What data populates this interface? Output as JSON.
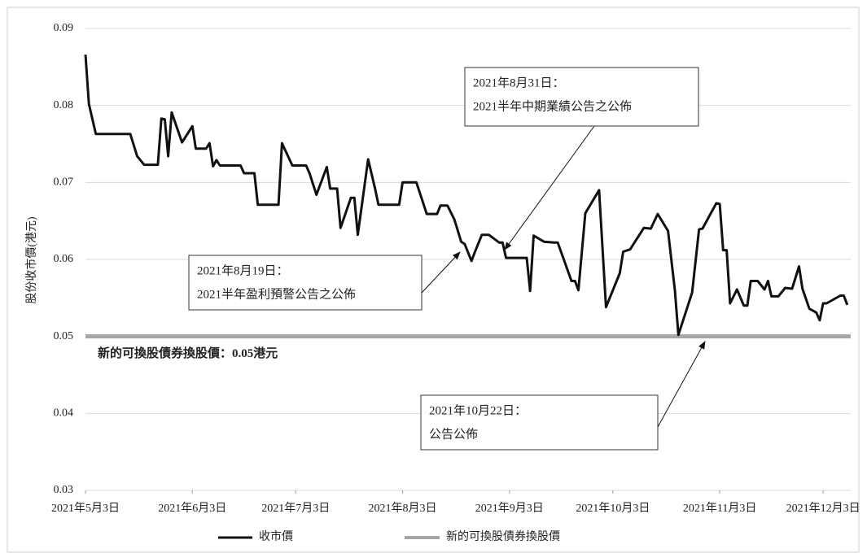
{
  "chart_data": {
    "type": "line",
    "ylabel": "股份收市價(港元)",
    "ylim": [
      0.03,
      0.09
    ],
    "yticks": [
      0.03,
      0.04,
      0.05,
      0.06,
      0.07,
      0.08,
      0.09
    ],
    "xlim": [
      "2021-05-03",
      "2021-12-11"
    ],
    "xticks": [
      {
        "value": "2021-05-03",
        "label": "2021年5月3日"
      },
      {
        "value": "2021-06-03",
        "label": "2021年6月3日"
      },
      {
        "value": "2021-07-03",
        "label": "2021年7月3日"
      },
      {
        "value": "2021-08-03",
        "label": "2021年8月3日"
      },
      {
        "value": "2021-09-03",
        "label": "2021年9月3日"
      },
      {
        "value": "2021-10-03",
        "label": "2021年10月3日"
      },
      {
        "value": "2021-11-03",
        "label": "2021年11月3日"
      },
      {
        "value": "2021-12-03",
        "label": "2021年12月3日"
      }
    ],
    "grid": true,
    "x": [
      "2021-05-03",
      "2021-05-04",
      "2021-05-06",
      "2021-05-16",
      "2021-05-18",
      "2021-05-20",
      "2021-05-24",
      "2021-05-25",
      "2021-05-26",
      "2021-05-27",
      "2021-05-28",
      "2021-05-31",
      "2021-06-03",
      "2021-06-04",
      "2021-06-07",
      "2021-06-08",
      "2021-06-09",
      "2021-06-10",
      "2021-06-11",
      "2021-06-17",
      "2021-06-18",
      "2021-06-21",
      "2021-06-22",
      "2021-06-28",
      "2021-06-29",
      "2021-07-02",
      "2021-07-06",
      "2021-07-07",
      "2021-07-09",
      "2021-07-12",
      "2021-07-13",
      "2021-07-15",
      "2021-07-16",
      "2021-07-19",
      "2021-07-20",
      "2021-07-21",
      "2021-07-24",
      "2021-07-26",
      "2021-07-27",
      "2021-08-02",
      "2021-08-03",
      "2021-08-07",
      "2021-08-10",
      "2021-08-13",
      "2021-08-14",
      "2021-08-16",
      "2021-08-18",
      "2021-08-20",
      "2021-08-21",
      "2021-08-23",
      "2021-08-24",
      "2021-08-26",
      "2021-08-28",
      "2021-08-31",
      "2021-09-01",
      "2021-09-02",
      "2021-09-08",
      "2021-09-09",
      "2021-09-10",
      "2021-09-13",
      "2021-09-16",
      "2021-09-17",
      "2021-09-21",
      "2021-09-22",
      "2021-09-23",
      "2021-09-25",
      "2021-09-29",
      "2021-10-01",
      "2021-10-05",
      "2021-10-06",
      "2021-10-08",
      "2021-10-12",
      "2021-10-14",
      "2021-10-16",
      "2021-10-19",
      "2021-10-21",
      "2021-10-22",
      "2021-10-26",
      "2021-10-28",
      "2021-10-29",
      "2021-11-02",
      "2021-11-03",
      "2021-11-04",
      "2021-11-05",
      "2021-11-06",
      "2021-11-08",
      "2021-11-10",
      "2021-11-11",
      "2021-11-12",
      "2021-11-14",
      "2021-11-16",
      "2021-11-17",
      "2021-11-18",
      "2021-11-20",
      "2021-11-22",
      "2021-11-24",
      "2021-11-26",
      "2021-11-27",
      "2021-11-29",
      "2021-12-01",
      "2021-12-02",
      "2021-12-03",
      "2021-12-04",
      "2021-12-08",
      "2021-12-09",
      "2021-12-10"
    ],
    "series": [
      {
        "name": "收市價",
        "color": "#111111",
        "values": [
          0.0866,
          0.0802,
          0.0763,
          0.0763,
          0.0734,
          0.0723,
          0.0723,
          0.0783,
          0.0782,
          0.0734,
          0.0791,
          0.0752,
          0.0773,
          0.0744,
          0.0744,
          0.0751,
          0.0721,
          0.0729,
          0.0722,
          0.0722,
          0.0712,
          0.0712,
          0.0671,
          0.0671,
          0.0751,
          0.0722,
          0.0722,
          0.0712,
          0.0684,
          0.072,
          0.0692,
          0.0692,
          0.0641,
          0.068,
          0.068,
          0.0632,
          0.073,
          0.0692,
          0.0671,
          0.0671,
          0.07,
          0.07,
          0.0659,
          0.0659,
          0.067,
          0.067,
          0.0652,
          0.0623,
          0.062,
          0.0598,
          0.061,
          0.0632,
          0.0632,
          0.0622,
          0.0622,
          0.0602,
          0.0602,
          0.0559,
          0.0631,
          0.0623,
          0.0622,
          0.0622,
          0.0572,
          0.0572,
          0.056,
          0.066,
          0.069,
          0.0538,
          0.0582,
          0.061,
          0.0613,
          0.0641,
          0.064,
          0.0659,
          0.0637,
          0.0559,
          0.0502,
          0.0557,
          0.0639,
          0.064,
          0.0673,
          0.0672,
          0.0612,
          0.0612,
          0.0543,
          0.0561,
          0.054,
          0.054,
          0.0572,
          0.0572,
          0.0561,
          0.0572,
          0.0552,
          0.0552,
          0.0563,
          0.0562,
          0.0591,
          0.0562,
          0.0536,
          0.0531,
          0.0521,
          0.0543,
          0.0543,
          0.0553,
          0.0553,
          0.0541
        ]
      }
    ],
    "reference_line": {
      "name": "新的可換股債券換股價",
      "value": 0.05,
      "color": "#a6a6a6",
      "label": "新的可換股債券換股價：0.05港元"
    },
    "annotations": [
      {
        "lines": [
          "2021年8月31日：",
          "2021半年中期業績公告之公佈"
        ]
      },
      {
        "lines": [
          "2021年8月19日：",
          "2021半年盈利預警公告之公佈"
        ]
      },
      {
        "lines": [
          "2021年10月22日：",
          "公告公佈"
        ]
      }
    ]
  }
}
